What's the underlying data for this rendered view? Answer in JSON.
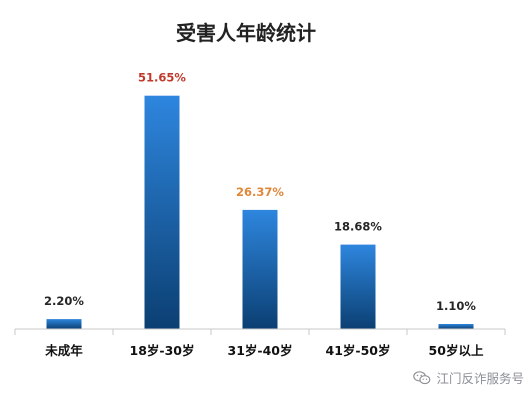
{
  "chart_data": {
    "type": "bar",
    "title": "受害人年龄统计",
    "categories": [
      "未成年",
      "18岁-30岁",
      "31岁-40岁",
      "41岁-50岁",
      "50岁以上"
    ],
    "values": [
      2.2,
      51.65,
      26.37,
      18.68,
      1.1
    ],
    "data_labels": [
      "2.20%",
      "51.65%",
      "26.37%",
      "18.68%",
      "1.10%"
    ],
    "label_colors": [
      "#262626",
      "#c0392b",
      "#e0873a",
      "#262626",
      "#262626"
    ],
    "bar_color_top": "#2e86de",
    "bar_color_bottom": "#0b3f72",
    "ylim": [
      0,
      60
    ],
    "grid": false,
    "legend": "none"
  },
  "watermark": {
    "text": "江门反诈服务号",
    "icon": "wechat-icon"
  }
}
